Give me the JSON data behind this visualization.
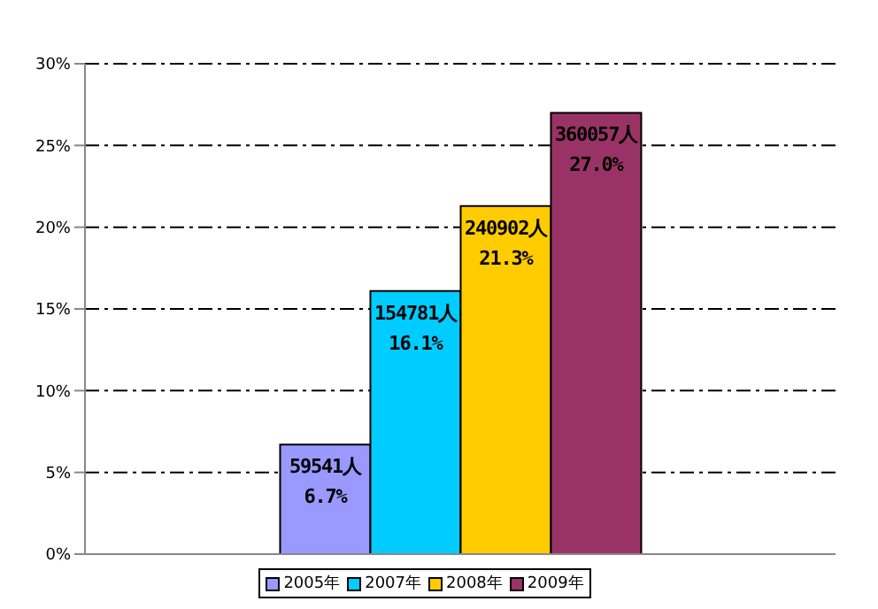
{
  "chart_data": {
    "type": "bar",
    "categories": [
      null
    ],
    "series": [
      {
        "name": "2005年",
        "color": "#9999ff",
        "values": [
          6.7
        ],
        "value_labels": [
          "59541人\n6.7%"
        ]
      },
      {
        "name": "2007年",
        "color": "#00ccff",
        "values": [
          16.1
        ],
        "value_labels": [
          "154781人\n16.1%"
        ]
      },
      {
        "name": "2008年",
        "color": "#ffcc00",
        "values": [
          21.3
        ],
        "value_labels": [
          "240902人\n21.3%"
        ]
      },
      {
        "name": "2009年",
        "color": "#993366",
        "values": [
          27.0
        ],
        "value_labels": [
          "360057人\n27.0%"
        ]
      }
    ],
    "ylim": [
      0,
      30
    ],
    "yticks": [
      {
        "value": 0,
        "label": "0%"
      },
      {
        "value": 5,
        "label": "5%"
      },
      {
        "value": 10,
        "label": "10%"
      },
      {
        "value": 15,
        "label": "15%"
      },
      {
        "value": 20,
        "label": "20%"
      },
      {
        "value": 25,
        "label": "25%"
      },
      {
        "value": 30,
        "label": "30%"
      }
    ],
    "grid": "y",
    "legend": "bottom"
  }
}
